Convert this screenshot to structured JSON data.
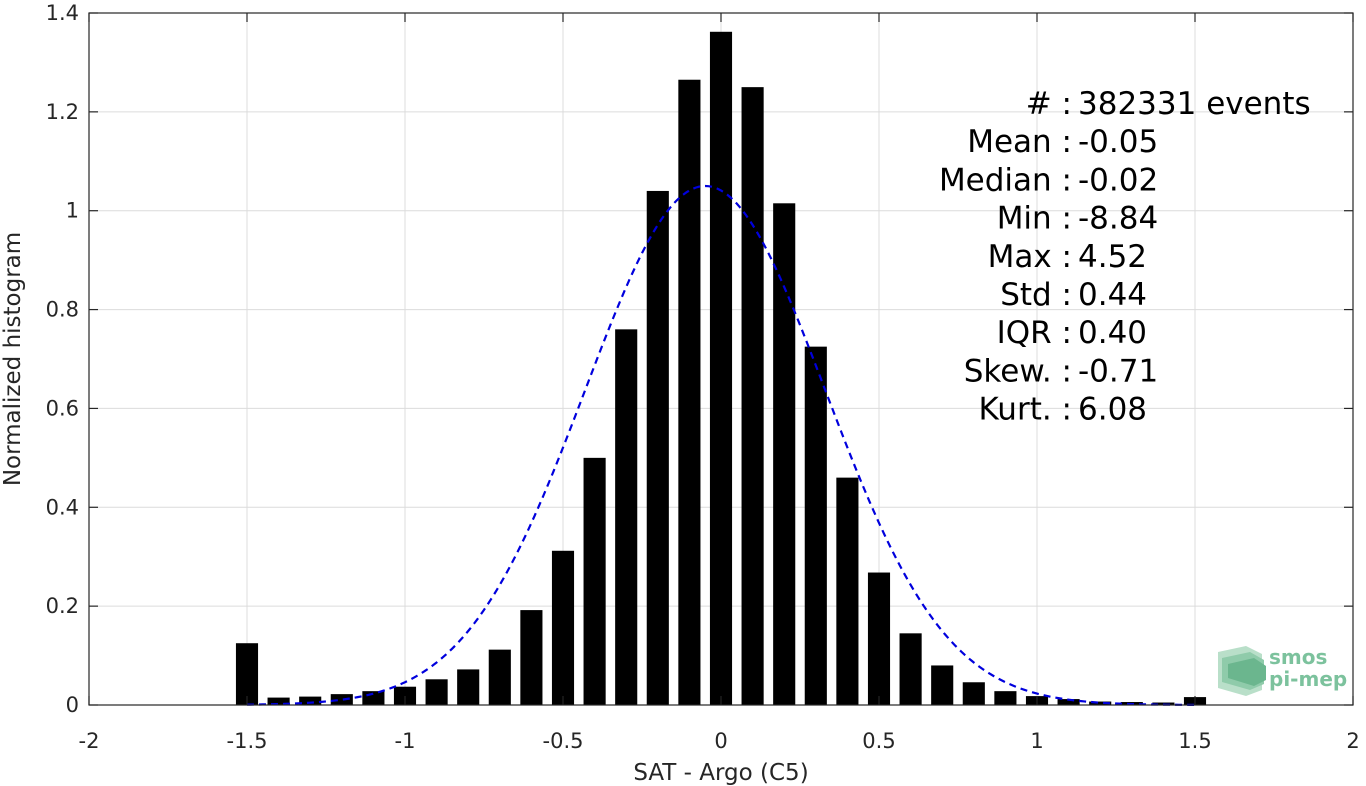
{
  "chart_data": {
    "type": "bar",
    "xlabel": "SAT - Argo (C5)",
    "ylabel": "Normalized histogram",
    "xlim": [
      -2,
      2
    ],
    "ylim": [
      0,
      1.4
    ],
    "xticks": [
      -2,
      -1.5,
      -1,
      -0.5,
      0,
      0.5,
      1,
      1.5,
      2
    ],
    "xtick_labels": [
      "-2",
      "-1.5",
      "-1",
      "-0.5",
      "0",
      "0.5",
      "1",
      "1.5",
      "2"
    ],
    "yticks": [
      0,
      0.2,
      0.4,
      0.6,
      0.8,
      1,
      1.2,
      1.4
    ],
    "ytick_labels": [
      "0",
      "0.2",
      "0.4",
      "0.6",
      "0.8",
      "1",
      "1.2",
      "1.4"
    ],
    "grid": true,
    "bar_color": "#000000",
    "bar_width": 0.07,
    "bins": [
      -1.5,
      -1.4,
      -1.3,
      -1.2,
      -1.1,
      -1.0,
      -0.9,
      -0.8,
      -0.7,
      -0.6,
      -0.5,
      -0.4,
      -0.3,
      -0.2,
      -0.1,
      0.0,
      0.1,
      0.2,
      0.3,
      0.4,
      0.5,
      0.6,
      0.7,
      0.8,
      0.9,
      1.0,
      1.1,
      1.2,
      1.3,
      1.4,
      1.5
    ],
    "values": [
      0.125,
      0.015,
      0.017,
      0.022,
      0.028,
      0.037,
      0.052,
      0.072,
      0.112,
      0.192,
      0.312,
      0.5,
      0.76,
      1.04,
      1.265,
      1.362,
      1.25,
      1.015,
      0.725,
      0.46,
      0.268,
      0.145,
      0.08,
      0.046,
      0.028,
      0.018,
      0.012,
      0.007,
      0.006,
      0.005,
      0.016
    ],
    "fit_curve": {
      "style": "dashed",
      "color": "#0000dd",
      "distribution": "normal",
      "mean": -0.05,
      "std": 0.38,
      "peak": 1.05,
      "x_range": [
        -1.5,
        1.5
      ]
    },
    "annotations": [
      {
        "label": "#  :",
        "value": "382331 events"
      },
      {
        "label": "Mean :",
        "value": "-0.05"
      },
      {
        "label": "Median :",
        "value": "-0.02"
      },
      {
        "label": "Min :",
        "value": "-8.84"
      },
      {
        "label": "Max :",
        "value": "4.52"
      },
      {
        "label": "Std :",
        "value": "0.44"
      },
      {
        "label": "IQR :",
        "value": "0.40"
      },
      {
        "label": "Skew. :",
        "value": "-0.71"
      },
      {
        "label": "Kurt. :",
        "value": "6.08"
      }
    ]
  },
  "logo": {
    "line1": "smos",
    "line2": "pi-mep",
    "color": "#7cc29d"
  }
}
